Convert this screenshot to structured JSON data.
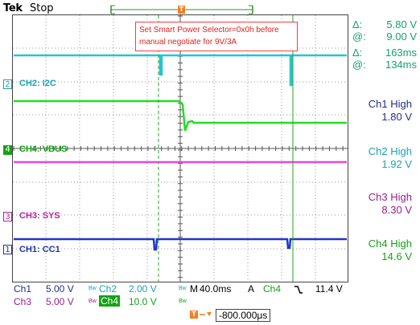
{
  "top_bar": {
    "brand": "Tek",
    "state": "Stop",
    "trigger_marker": "T"
  },
  "annotation": {
    "line1": "Set Smart Power Selector=0x0h before",
    "line2": "manual negotiate for 9V/3A"
  },
  "channel_labels": [
    {
      "num": "2",
      "label": "CH2: I2C",
      "color": "#1aa3b3"
    },
    {
      "num": "4",
      "label": "CH4: VBUS",
      "color": "#13a313"
    },
    {
      "num": "3",
      "label": "CH3: SYS",
      "color": "#b8229f"
    },
    {
      "num": "1",
      "label": "CH1: CC1",
      "color": "#1f35a7"
    }
  ],
  "measurements": {
    "dv_label": "Δ:",
    "dv_value": "5.80 V",
    "v_label": "@:",
    "v_value": "9.00 V",
    "dt_label": "Δ:",
    "dt_value": "163ms",
    "t_label": "@:",
    "t_value": "134ms",
    "color": "#13a070"
  },
  "highs": [
    {
      "label": "Ch1 High",
      "value": "1.80 V",
      "color": "#1f2f8f"
    },
    {
      "label": "Ch2 High",
      "value": "1.92 V",
      "color": "#1aa3b3"
    },
    {
      "label": "Ch3 High",
      "value": "8.30 V",
      "color": "#9b1d8e"
    },
    {
      "label": "Ch4 High",
      "value": "14.6 V",
      "color": "#13a313"
    }
  ],
  "bottom": {
    "ch1_name": "Ch1",
    "ch1_scale": "5.00 V",
    "ch2_name": "Ch2",
    "ch2_scale": "2.00 V",
    "timebase_prefix": "M",
    "timebase": "40.0ms",
    "trigger_mode": "A",
    "trigger_src": "Ch4",
    "trigger_level": "11.4 V",
    "ch3_name": "Ch3",
    "ch3_scale": "5.00 V",
    "ch4_name": "Ch4",
    "ch4_scale": "10.0 V",
    "trig_pos": "-800.000μs"
  }
}
